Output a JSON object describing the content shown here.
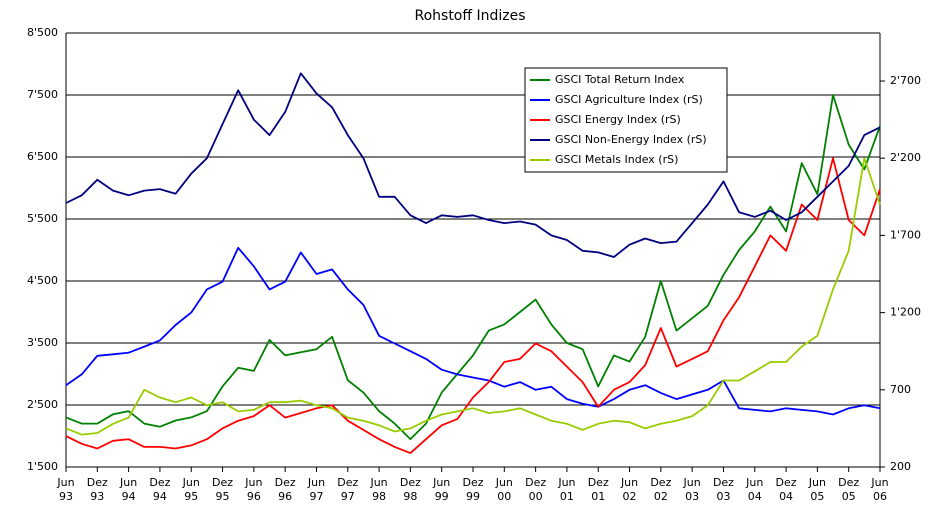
{
  "chart_data": {
    "type": "line",
    "title": "Rohstoff Indizes",
    "x": [
      1993.5,
      1993.75,
      1994,
      1994.25,
      1994.5,
      1994.75,
      1995,
      1995.25,
      1995.5,
      1995.75,
      1996,
      1996.25,
      1996.5,
      1996.75,
      1997,
      1997.25,
      1997.5,
      1997.75,
      1998,
      1998.25,
      1998.5,
      1998.75,
      1999,
      1999.25,
      1999.5,
      1999.75,
      2000,
      2000.25,
      2000.5,
      2000.75,
      2001,
      2001.25,
      2001.5,
      2001.75,
      2002,
      2002.25,
      2002.5,
      2002.75,
      2003,
      2003.25,
      2003.5,
      2003.75,
      2004,
      2004.25,
      2004.5,
      2004.75,
      2005,
      2005.25,
      2005.5,
      2005.75,
      2006,
      2006.25,
      2006.5
    ],
    "series": [
      {
        "name": "GSCI Total Return Index",
        "color": "#008000",
        "axis": "y",
        "values": [
          2300,
          2200,
          2200,
          2350,
          2400,
          2200,
          2150,
          2250,
          2300,
          2400,
          2800,
          3100,
          3050,
          3550,
          3300,
          3350,
          3400,
          3600,
          2900,
          2700,
          2400,
          2200,
          1950,
          2200,
          2700,
          3000,
          3300,
          3700,
          3800,
          4000,
          4200,
          3800,
          3500,
          3400,
          2800,
          3300,
          3200,
          3600,
          4500,
          3700,
          3900,
          4100,
          4600,
          5000,
          5300,
          5700,
          5300,
          6400,
          5900,
          7500,
          6700,
          6300,
          7000
        ]
      },
      {
        "name": "GSCI Agriculture Index (rS)",
        "color": "#0000ff",
        "axis": "y2",
        "values": [
          730,
          800,
          920,
          930,
          940,
          980,
          1020,
          1120,
          1200,
          1350,
          1400,
          1620,
          1500,
          1350,
          1400,
          1590,
          1450,
          1480,
          1350,
          1250,
          1050,
          1000,
          950,
          900,
          830,
          800,
          780,
          760,
          720,
          750,
          700,
          720,
          640,
          610,
          590,
          640,
          700,
          730,
          680,
          640,
          670,
          700,
          760,
          580,
          570,
          560,
          580,
          570,
          560,
          540,
          580,
          600,
          580
        ]
      },
      {
        "name": "GSCI Energy Index (rS)",
        "color": "#ff0000",
        "axis": "y2",
        "values": [
          400,
          350,
          320,
          370,
          380,
          330,
          330,
          320,
          340,
          380,
          450,
          500,
          530,
          600,
          520,
          550,
          580,
          600,
          500,
          440,
          380,
          330,
          290,
          380,
          470,
          510,
          650,
          750,
          880,
          900,
          1000,
          950,
          850,
          750,
          590,
          700,
          750,
          860,
          1100,
          850,
          900,
          950,
          1150,
          1300,
          1500,
          1700,
          1600,
          1900,
          1800,
          2200,
          1800,
          1700,
          2000
        ]
      },
      {
        "name": "GSCI Non-Energy Index (rS)",
        "color": "#000080",
        "axis": "y2",
        "values": [
          1910,
          1960,
          2060,
          1990,
          1960,
          1990,
          2000,
          1970,
          2100,
          2200,
          2420,
          2640,
          2450,
          2350,
          2500,
          2750,
          2620,
          2530,
          2350,
          2200,
          1950,
          1950,
          1830,
          1780,
          1830,
          1820,
          1830,
          1800,
          1780,
          1790,
          1770,
          1700,
          1670,
          1600,
          1590,
          1560,
          1640,
          1680,
          1650,
          1660,
          1780,
          1900,
          2050,
          1850,
          1820,
          1860,
          1800,
          1850,
          1950,
          2050,
          2150,
          2350,
          2400
        ]
      },
      {
        "name": "GSCI Metals Index (rS)",
        "color": "#99cc00",
        "axis": "y2",
        "values": [
          450,
          410,
          420,
          480,
          520,
          700,
          650,
          620,
          650,
          600,
          620,
          560,
          570,
          620,
          620,
          630,
          600,
          580,
          520,
          500,
          470,
          430,
          450,
          500,
          540,
          560,
          580,
          550,
          560,
          580,
          540,
          500,
          480,
          440,
          480,
          500,
          490,
          450,
          480,
          500,
          530,
          600,
          760,
          760,
          820,
          880,
          880,
          980,
          1050,
          1350,
          1600,
          2200,
          1900
        ]
      }
    ],
    "xlim": [
      1993.5,
      2006.5
    ],
    "xticks": [
      {
        "value": 1993.5,
        "label": "Jun 93"
      },
      {
        "value": 1994,
        "label": "Dez 93"
      },
      {
        "value": 1994.5,
        "label": "Jun 94"
      },
      {
        "value": 1995,
        "label": "Dez 94"
      },
      {
        "value": 1995.5,
        "label": "Jun 95"
      },
      {
        "value": 1996,
        "label": "Dez 95"
      },
      {
        "value": 1996.5,
        "label": "Jun 96"
      },
      {
        "value": 1997,
        "label": "Dez 96"
      },
      {
        "value": 1997.5,
        "label": "Jun 97"
      },
      {
        "value": 1998,
        "label": "Dez 97"
      },
      {
        "value": 1998.5,
        "label": "Jun 98"
      },
      {
        "value": 1999,
        "label": "Dez 98"
      },
      {
        "value": 1999.5,
        "label": "Jun 99"
      },
      {
        "value": 2000,
        "label": "Dez 99"
      },
      {
        "value": 2000.5,
        "label": "Jun 00"
      },
      {
        "value": 2001,
        "label": "Dez 00"
      },
      {
        "value": 2001.5,
        "label": "Jun 01"
      },
      {
        "value": 2002,
        "label": "Dez 01"
      },
      {
        "value": 2002.5,
        "label": "Jun 02"
      },
      {
        "value": 2003,
        "label": "Dez 02"
      },
      {
        "value": 2003.5,
        "label": "Jun 03"
      },
      {
        "value": 2004,
        "label": "Dez 03"
      },
      {
        "value": 2004.5,
        "label": "Jun 04"
      },
      {
        "value": 2005,
        "label": "Dez 04"
      },
      {
        "value": 2005.5,
        "label": "Jun 05"
      },
      {
        "value": 2006,
        "label": "Dez 05"
      },
      {
        "value": 2006.5,
        "label": "Jun 06"
      }
    ],
    "ylim": [
      1500,
      8500
    ],
    "yticks": [
      {
        "value": 1500,
        "label": "1'500"
      },
      {
        "value": 2500,
        "label": "2'500"
      },
      {
        "value": 3500,
        "label": "3'500"
      },
      {
        "value": 4500,
        "label": "4'500"
      },
      {
        "value": 5500,
        "label": "5'500"
      },
      {
        "value": 6500,
        "label": "6'500"
      },
      {
        "value": 7500,
        "label": "7'500"
      },
      {
        "value": 8500,
        "label": "8'500"
      }
    ],
    "y2lim": [
      200,
      3011
    ],
    "y2ticks": [
      200,
      700,
      {
        "value": 1200,
        "label": "1'200"
      },
      {
        "value": 1700,
        "label": "1'700"
      },
      {
        "value": 2200,
        "label": "2'200"
      },
      {
        "value": 2700,
        "label": "2'700"
      }
    ],
    "grid": true,
    "legend": "upper right"
  }
}
